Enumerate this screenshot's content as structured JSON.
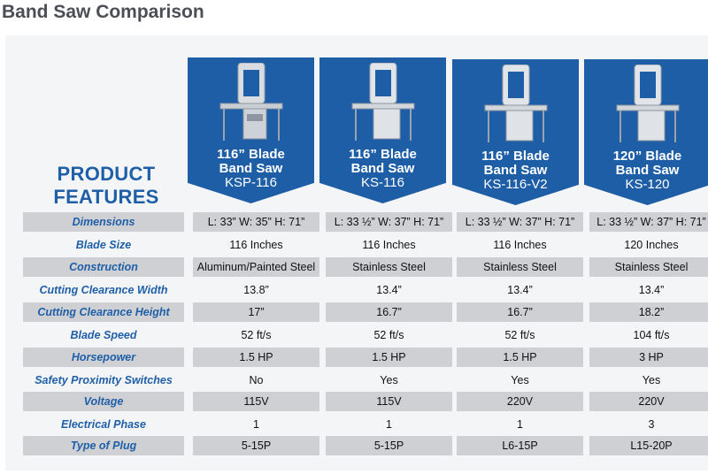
{
  "page": {
    "title": "Band Saw Comparison"
  },
  "features_heading": [
    "PRODUCT",
    "FEATURES"
  ],
  "colors": {
    "header_blue": "#1e5ea6",
    "label_blue": "#1f5fa8",
    "row_shade": "#cfd0d3"
  },
  "products": [
    {
      "name_line1": "116” Blade",
      "name_line2": "Band Saw",
      "model": "KSP-116",
      "image": "band-saw-image"
    },
    {
      "name_line1": "116” Blade",
      "name_line2": "Band Saw",
      "model": "KS-116",
      "image": "band-saw-image"
    },
    {
      "name_line1": "116” Blade",
      "name_line2": "Band Saw",
      "model": "KS-116-V2",
      "image": "band-saw-image"
    },
    {
      "name_line1": "120” Blade",
      "name_line2": "Band Saw",
      "model": "KS-120",
      "image": "band-saw-image"
    }
  ],
  "rows": [
    {
      "label": "Dimensions",
      "shaded": true,
      "values": [
        "L: 33” W: 35” H: 71”",
        "L: 33 ½” W: 37” H: 71”",
        "L: 33 ½” W: 37” H: 71”",
        "L: 33 ½” W: 37” H: 71”"
      ]
    },
    {
      "label": "Blade Size",
      "shaded": false,
      "values": [
        "116 Inches",
        "116 Inches",
        "116 Inches",
        "120 Inches"
      ]
    },
    {
      "label": "Construction",
      "shaded": true,
      "values": [
        "Aluminum/Painted Steel",
        "Stainless Steel",
        "Stainless Steel",
        "Stainless Steel"
      ]
    },
    {
      "label": "Cutting Clearance Width",
      "shaded": false,
      "values": [
        "13.8”",
        "13.4”",
        "13.4”",
        "13.4”"
      ]
    },
    {
      "label": "Cutting Clearance Height",
      "shaded": true,
      "values": [
        "17”",
        "16.7”",
        "16.7”",
        "18.2”"
      ]
    },
    {
      "label": "Blade Speed",
      "shaded": false,
      "values": [
        "52 ft/s",
        "52 ft/s",
        "52 ft/s",
        "104 ft/s"
      ]
    },
    {
      "label": "Horsepower",
      "shaded": true,
      "values": [
        "1.5 HP",
        "1.5 HP",
        "1.5 HP",
        "3 HP"
      ]
    },
    {
      "label": "Safety Proximity Switches",
      "shaded": false,
      "values": [
        "No",
        "Yes",
        "Yes",
        "Yes"
      ]
    },
    {
      "label": "Voltage",
      "shaded": true,
      "values": [
        "115V",
        "115V",
        "220V",
        "220V"
      ]
    },
    {
      "label": "Electrical Phase",
      "shaded": false,
      "values": [
        "1",
        "1",
        "1",
        "3"
      ]
    },
    {
      "label": "Type of Plug",
      "shaded": true,
      "values": [
        "5-15P",
        "5-15P",
        "L6-15P",
        "L15-20P"
      ]
    }
  ]
}
